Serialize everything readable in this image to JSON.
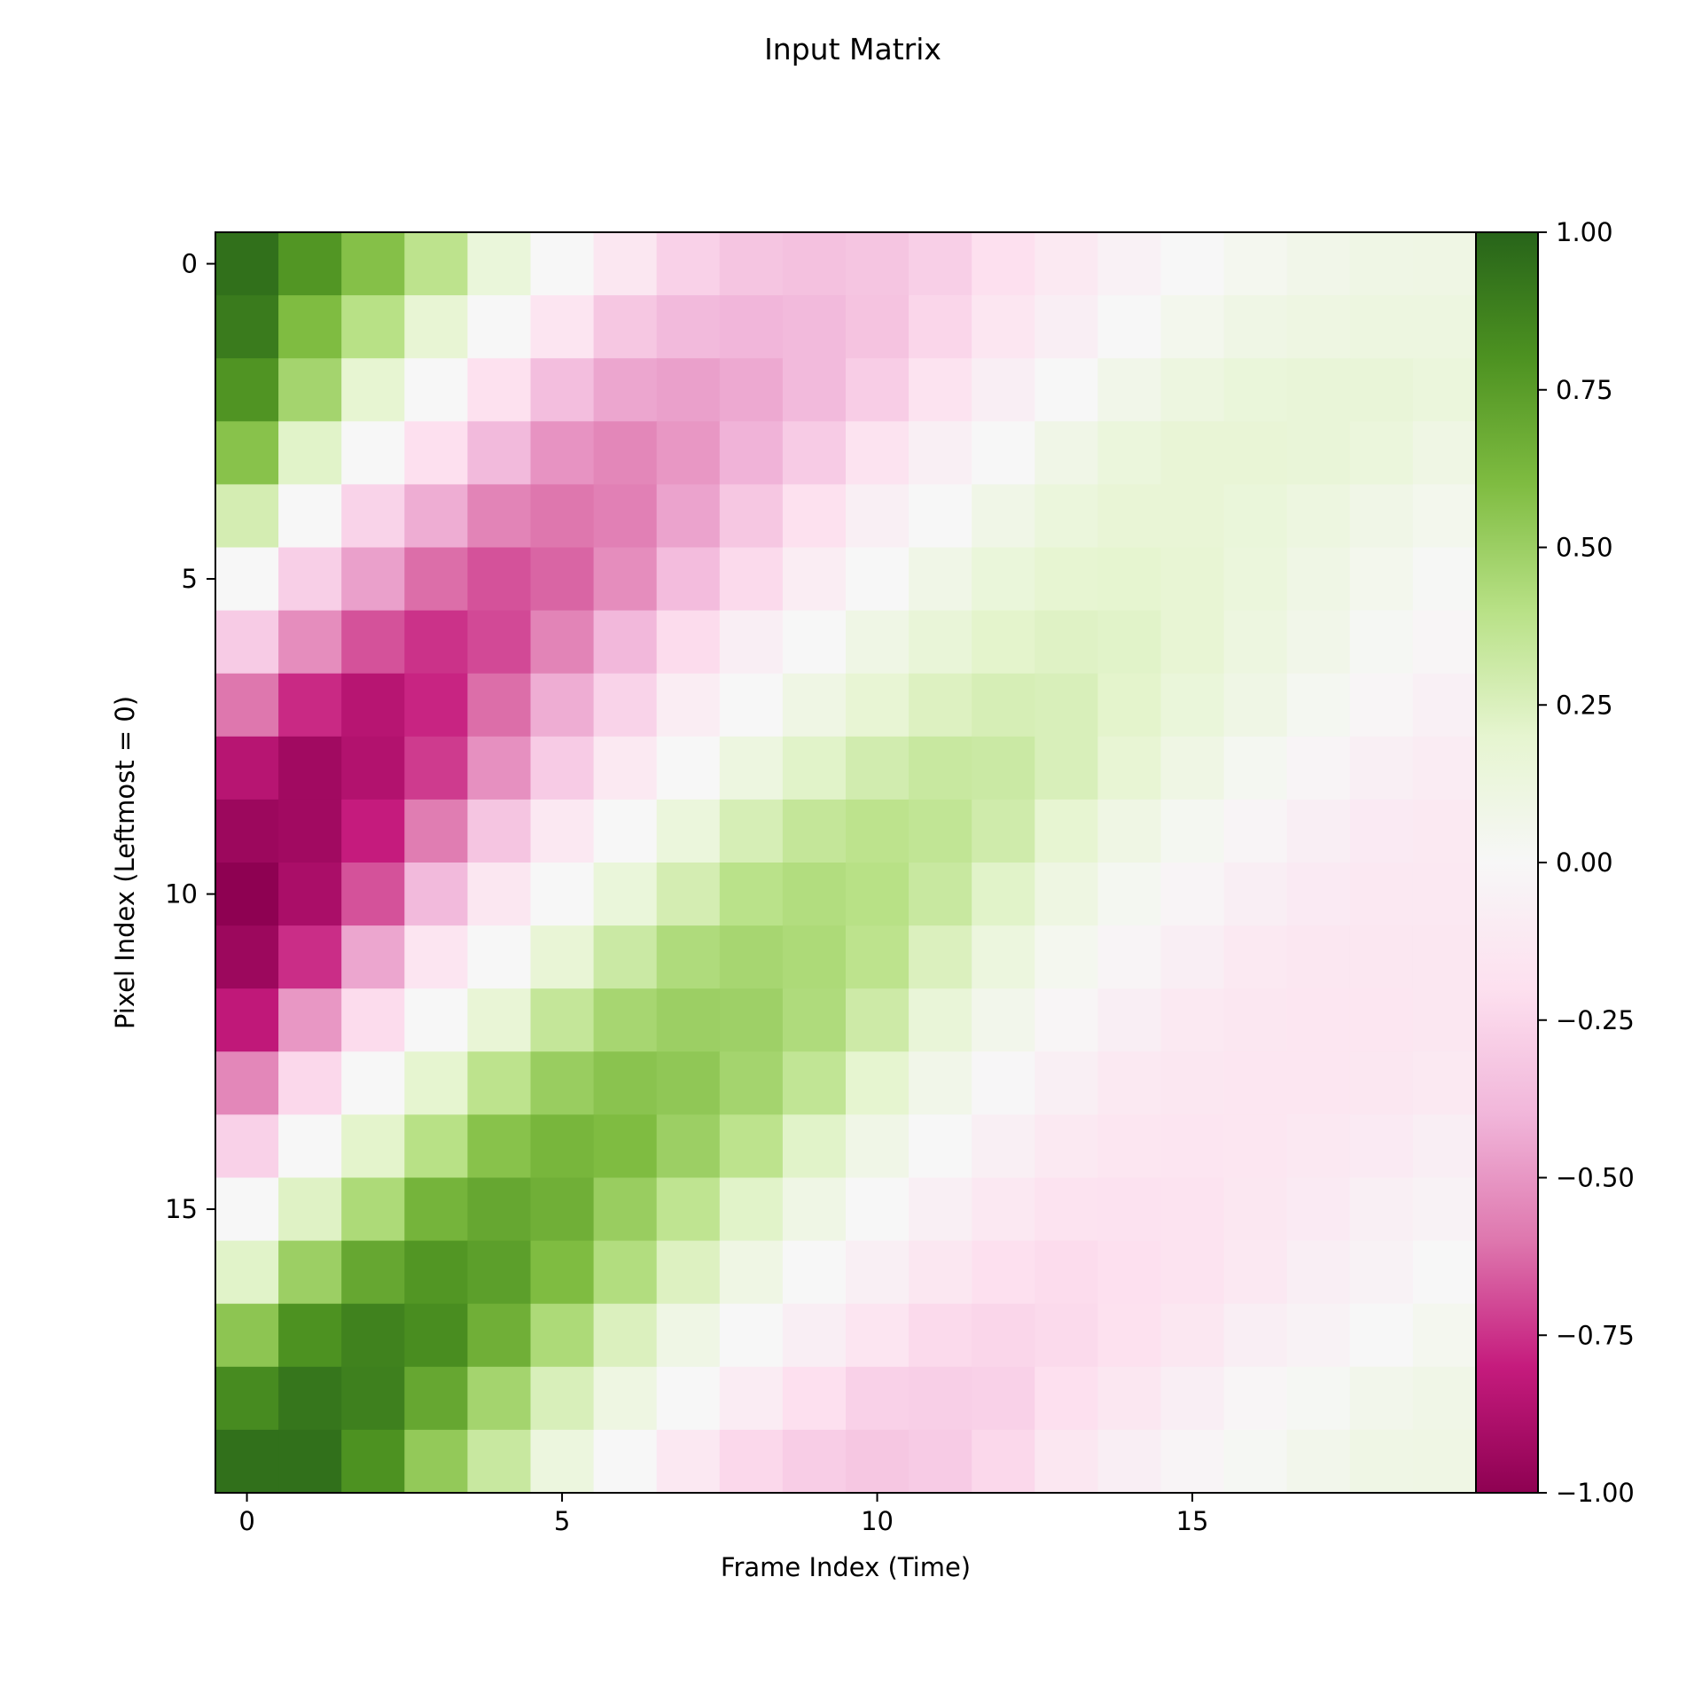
{
  "chart_data": {
    "type": "heatmap",
    "title": "Input Matrix",
    "xlabel": "Frame Index (Time)",
    "ylabel": "Pixel Index (Leftmost = 0)",
    "x_ticks": [
      0,
      5,
      10,
      15
    ],
    "y_ticks": [
      0,
      5,
      10,
      15
    ],
    "colorbar": {
      "min": -1.0,
      "max": 1.0,
      "ticks": [
        -1.0,
        -0.75,
        -0.5,
        -0.25,
        0.0,
        0.25,
        0.5,
        0.75,
        1.0
      ],
      "tick_labels": [
        "−1.00",
        "−0.75",
        "−0.50",
        "−0.25",
        "0.00",
        "0.25",
        "0.50",
        "0.75",
        "1.00"
      ],
      "colormap": "PiYG",
      "colormap_stops": [
        "#8e0152",
        "#c51b7d",
        "#de77ae",
        "#f1b6da",
        "#fde0ef",
        "#f7f7f7",
        "#e6f5d0",
        "#b8e186",
        "#7fbc41",
        "#4d9221",
        "#276419"
      ]
    },
    "grid": false,
    "n_rows": 20,
    "n_cols": 20,
    "values": [
      [
        0.95,
        0.78,
        0.58,
        0.38,
        0.15,
        0.0,
        -0.14,
        -0.27,
        -0.33,
        -0.35,
        -0.33,
        -0.28,
        -0.2,
        -0.12,
        -0.05,
        0.0,
        0.04,
        0.07,
        0.09,
        0.1
      ],
      [
        0.9,
        0.6,
        0.4,
        0.18,
        0.0,
        -0.16,
        -0.32,
        -0.38,
        -0.4,
        -0.38,
        -0.34,
        -0.25,
        -0.15,
        -0.08,
        0.0,
        0.05,
        0.09,
        0.11,
        0.12,
        0.12
      ],
      [
        0.79,
        0.47,
        0.19,
        0.0,
        -0.19,
        -0.36,
        -0.45,
        -0.47,
        -0.44,
        -0.38,
        -0.29,
        -0.17,
        -0.08,
        0.0,
        0.07,
        0.12,
        0.15,
        0.16,
        0.16,
        0.14
      ],
      [
        0.57,
        0.22,
        0.0,
        -0.2,
        -0.38,
        -0.51,
        -0.55,
        -0.5,
        -0.41,
        -0.3,
        -0.17,
        -0.07,
        0.0,
        0.08,
        0.14,
        0.17,
        0.17,
        0.16,
        0.14,
        0.1
      ],
      [
        0.28,
        0.0,
        -0.26,
        -0.43,
        -0.56,
        -0.6,
        -0.57,
        -0.46,
        -0.32,
        -0.19,
        -0.07,
        0.0,
        0.08,
        0.14,
        0.17,
        0.17,
        0.15,
        0.12,
        0.08,
        0.05
      ],
      [
        0.0,
        -0.28,
        -0.47,
        -0.62,
        -0.68,
        -0.64,
        -0.53,
        -0.37,
        -0.23,
        -0.09,
        0.0,
        0.08,
        0.15,
        0.19,
        0.2,
        0.18,
        0.14,
        0.09,
        0.05,
        0.01
      ],
      [
        -0.3,
        -0.53,
        -0.68,
        -0.75,
        -0.7,
        -0.56,
        -0.39,
        -0.22,
        -0.08,
        0.0,
        0.09,
        0.16,
        0.21,
        0.23,
        0.22,
        0.18,
        0.12,
        0.07,
        0.02,
        -0.02
      ],
      [
        -0.6,
        -0.77,
        -0.85,
        -0.78,
        -0.62,
        -0.43,
        -0.26,
        -0.09,
        0.0,
        0.1,
        0.18,
        0.24,
        0.27,
        0.26,
        0.21,
        0.15,
        0.09,
        0.03,
        -0.02,
        -0.06
      ],
      [
        -0.85,
        -0.93,
        -0.87,
        -0.73,
        -0.52,
        -0.3,
        -0.12,
        0.0,
        0.12,
        0.22,
        0.29,
        0.33,
        0.32,
        0.26,
        0.18,
        0.1,
        0.03,
        -0.03,
        -0.07,
        -0.1
      ],
      [
        -0.95,
        -0.93,
        -0.8,
        -0.58,
        -0.33,
        -0.13,
        0.0,
        0.14,
        0.27,
        0.35,
        0.38,
        0.36,
        0.3,
        0.19,
        0.1,
        0.03,
        -0.03,
        -0.08,
        -0.11,
        -0.12
      ],
      [
        -1.0,
        -0.9,
        -0.68,
        -0.38,
        -0.14,
        0.0,
        0.15,
        0.28,
        0.39,
        0.42,
        0.4,
        0.33,
        0.22,
        0.11,
        0.03,
        -0.03,
        -0.08,
        -0.11,
        -0.13,
        -0.13
      ],
      [
        -0.95,
        -0.76,
        -0.45,
        -0.16,
        0.0,
        0.17,
        0.32,
        0.43,
        0.46,
        0.44,
        0.38,
        0.25,
        0.13,
        0.04,
        -0.03,
        -0.08,
        -0.12,
        -0.14,
        -0.14,
        -0.14
      ],
      [
        -0.82,
        -0.5,
        -0.22,
        0.0,
        0.17,
        0.35,
        0.46,
        0.5,
        0.49,
        0.43,
        0.31,
        0.16,
        0.06,
        -0.02,
        -0.08,
        -0.12,
        -0.14,
        -0.15,
        -0.15,
        -0.14
      ],
      [
        -0.55,
        -0.24,
        0.0,
        0.2,
        0.38,
        0.51,
        0.56,
        0.54,
        0.47,
        0.36,
        0.2,
        0.07,
        -0.01,
        -0.07,
        -0.12,
        -0.14,
        -0.15,
        -0.15,
        -0.14,
        -0.12
      ],
      [
        -0.27,
        0.0,
        0.21,
        0.4,
        0.57,
        0.63,
        0.6,
        0.5,
        0.38,
        0.22,
        0.08,
        0.0,
        -0.07,
        -0.12,
        -0.15,
        -0.16,
        -0.15,
        -0.13,
        -0.11,
        -0.08
      ],
      [
        0.0,
        0.23,
        0.44,
        0.64,
        0.7,
        0.66,
        0.51,
        0.37,
        0.22,
        0.09,
        0.0,
        -0.07,
        -0.13,
        -0.17,
        -0.18,
        -0.17,
        -0.14,
        -0.11,
        -0.07,
        -0.04
      ],
      [
        0.22,
        0.5,
        0.7,
        0.78,
        0.74,
        0.6,
        0.42,
        0.24,
        0.1,
        0.0,
        -0.07,
        -0.14,
        -0.2,
        -0.22,
        -0.2,
        -0.17,
        -0.13,
        -0.08,
        -0.04,
        0.0
      ],
      [
        0.55,
        0.8,
        0.87,
        0.82,
        0.66,
        0.44,
        0.25,
        0.09,
        0.0,
        -0.08,
        -0.16,
        -0.23,
        -0.25,
        -0.23,
        -0.19,
        -0.14,
        -0.08,
        -0.04,
        0.0,
        0.04
      ],
      [
        0.83,
        0.92,
        0.88,
        0.7,
        0.47,
        0.26,
        0.11,
        0.0,
        -0.1,
        -0.2,
        -0.27,
        -0.28,
        -0.27,
        -0.2,
        -0.14,
        -0.08,
        -0.02,
        0.02,
        0.06,
        0.08
      ],
      [
        0.95,
        0.95,
        0.8,
        0.53,
        0.33,
        0.13,
        0.0,
        -0.13,
        -0.24,
        -0.29,
        -0.32,
        -0.3,
        -0.24,
        -0.14,
        -0.08,
        -0.03,
        0.02,
        0.06,
        0.09,
        0.1
      ]
    ]
  }
}
